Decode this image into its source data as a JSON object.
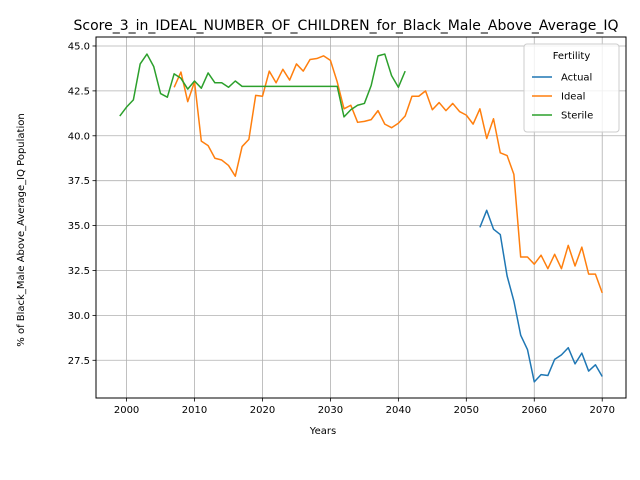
{
  "chart_data": {
    "type": "line",
    "title": "Score_3_in_IDEAL_NUMBER_OF_CHILDREN_for_Black_Male_Above_Average_IQ",
    "xlabel": "Years",
    "ylabel": "% of Black_Male Above_Average_IQ Population",
    "xlim": [
      1995.5,
      2073.5
    ],
    "ylim": [
      25.4,
      45.5
    ],
    "xticks": [
      2000,
      2010,
      2020,
      2030,
      2040,
      2050,
      2060,
      2070
    ],
    "yticks": [
      27.5,
      30.0,
      32.5,
      35.0,
      37.5,
      40.0,
      42.5,
      45.0
    ],
    "grid": true,
    "legend": {
      "title": "Fertility",
      "placement": "top-right"
    },
    "series": [
      {
        "name": "Actual",
        "color": "#1f77b4",
        "x": [
          2052,
          2053,
          2054,
          2055,
          2056,
          2057,
          2058,
          2059,
          2060,
          2061,
          2062,
          2063,
          2064,
          2065,
          2066,
          2067,
          2068,
          2069,
          2070
        ],
        "values": [
          34.9,
          35.85,
          34.8,
          34.5,
          32.2,
          30.8,
          28.9,
          28.1,
          26.3,
          26.7,
          26.65,
          27.55,
          27.8,
          28.2,
          27.3,
          27.9,
          26.9,
          27.25,
          26.6
        ]
      },
      {
        "name": "Ideal",
        "color": "#ff7f0e",
        "x": [
          2007,
          2008,
          2009,
          2010,
          2011,
          2012,
          2013,
          2014,
          2015,
          2016,
          2017,
          2018,
          2019,
          2020,
          2021,
          2022,
          2023,
          2024,
          2025,
          2026,
          2027,
          2028,
          2029,
          2030,
          2031,
          2032,
          2033,
          2034,
          2035,
          2036,
          2037,
          2038,
          2039,
          2040,
          2041,
          2042,
          2043,
          2044,
          2045,
          2046,
          2047,
          2048,
          2049,
          2050,
          2051,
          2052,
          2053,
          2054,
          2055,
          2056,
          2057,
          2058,
          2059,
          2060,
          2061,
          2062,
          2063,
          2064,
          2065,
          2066,
          2067,
          2068,
          2069,
          2070
        ],
        "values": [
          42.7,
          43.55,
          41.9,
          43.0,
          39.7,
          39.45,
          38.75,
          38.65,
          38.35,
          37.75,
          39.4,
          39.8,
          42.25,
          42.2,
          43.6,
          42.95,
          43.7,
          43.1,
          44.0,
          43.6,
          44.25,
          44.3,
          44.45,
          44.2,
          43.0,
          41.5,
          41.7,
          40.75,
          40.8,
          40.9,
          41.4,
          40.65,
          40.45,
          40.7,
          41.1,
          42.2,
          42.2,
          42.5,
          41.45,
          41.85,
          41.4,
          41.8,
          41.35,
          41.15,
          40.65,
          41.5,
          39.85,
          40.95,
          39.05,
          38.9,
          37.85,
          33.25,
          33.25,
          32.85,
          33.35,
          32.6,
          33.4,
          32.6,
          33.9,
          32.75,
          33.8,
          32.3,
          32.3,
          31.25
        ]
      },
      {
        "name": "Sterile",
        "color": "#2ca02c",
        "x": [
          1999,
          2000,
          2001,
          2002,
          2003,
          2004,
          2005,
          2006,
          2007,
          2008,
          2009,
          2010,
          2011,
          2012,
          2013,
          2014,
          2015,
          2016,
          2017,
          2018,
          2019,
          2020,
          2021,
          2022,
          2023,
          2024,
          2025,
          2026,
          2027,
          2028,
          2029,
          2030,
          2031,
          2032,
          2033,
          2034,
          2035,
          2036,
          2037,
          2038,
          2039,
          2040,
          2041
        ],
        "values": [
          41.1,
          41.6,
          42.0,
          44.0,
          44.55,
          43.85,
          42.35,
          42.15,
          43.45,
          43.2,
          42.6,
          43.05,
          42.65,
          43.5,
          42.95,
          42.95,
          42.7,
          43.05,
          42.75,
          42.75,
          42.75,
          42.75,
          42.75,
          42.75,
          42.75,
          42.75,
          42.75,
          42.75,
          42.75,
          42.75,
          42.75,
          42.75,
          42.75,
          41.05,
          41.45,
          41.7,
          41.8,
          42.8,
          44.45,
          44.55,
          43.35,
          42.7,
          43.6
        ]
      }
    ]
  }
}
